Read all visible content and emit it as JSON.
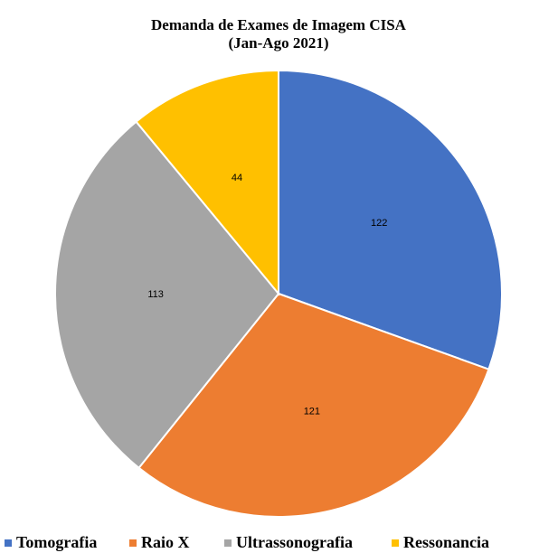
{
  "chart_data": {
    "type": "pie",
    "title": "Demanda de Exames de Imagem CISA",
    "subtitle": "(Jan-Ago 2021)",
    "categories": [
      "Tomografia",
      "Raio X",
      "Ultrassonografia",
      "Ressonancia"
    ],
    "values": [
      122,
      121,
      113,
      44
    ],
    "colors": [
      "#4472c4",
      "#ed7d31",
      "#a5a5a5",
      "#ffc000"
    ],
    "legend": "bottom"
  }
}
